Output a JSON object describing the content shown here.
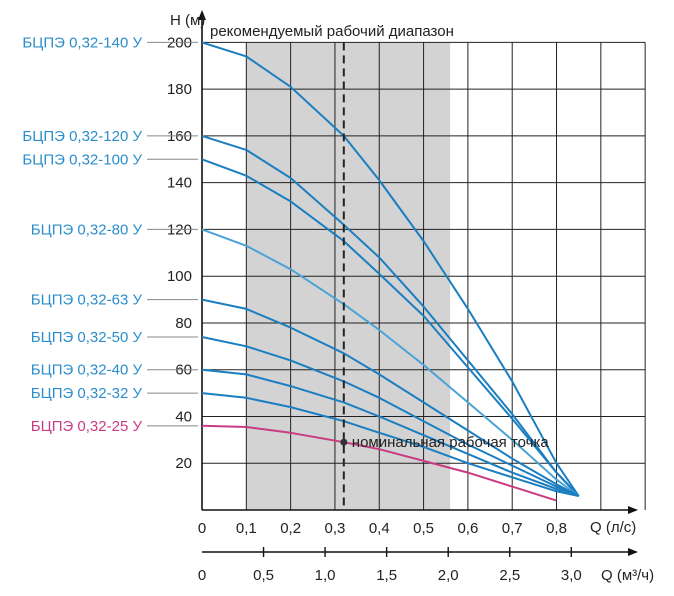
{
  "chart_data": {
    "type": "line",
    "ylabel": "H (м)",
    "xlabel": "Q (л/с)",
    "xlabel2": "Q (м³/ч)",
    "range_label": "рекомендуемый рабочий диапазон",
    "point_label": "номинальная рабочая точка",
    "y_ticks": [
      "20",
      "40",
      "60",
      "80",
      "100",
      "120",
      "140",
      "160",
      "180",
      "200"
    ],
    "x_ticks": [
      "0",
      "0,1",
      "0,2",
      "0,3",
      "0,4",
      "0,5",
      "0,6",
      "0,7",
      "0,8"
    ],
    "x2_ticks": [
      "0",
      "0,5",
      "1,0",
      "1,5",
      "2,0",
      "2,5",
      "3,0"
    ],
    "xlim": [
      0,
      0.95
    ],
    "ylim": [
      0,
      210
    ],
    "x2lim": [
      0,
      3.42
    ],
    "recommended_range": [
      0.1,
      0.56
    ],
    "nominal_flow": 0.32,
    "end_point": [
      0.85,
      6
    ],
    "grid": true,
    "colors": {
      "grid": "#222222",
      "range_fill": "#d3d3d3",
      "label_blue": "#2b8ecb",
      "label_pink": "#c83c82"
    },
    "series": [
      {
        "name": "БЦПЭ 0,32-140 У",
        "color": "#1a7ec1",
        "x": [
          0,
          0.1,
          0.2,
          0.32,
          0.4,
          0.5,
          0.6,
          0.7,
          0.8,
          0.85
        ],
        "y": [
          200,
          194,
          181,
          160,
          141,
          115,
          86,
          55,
          20,
          6
        ]
      },
      {
        "name": "БЦПЭ 0,32-120 У",
        "color": "#1a7ec1",
        "x": [
          0,
          0.1,
          0.2,
          0.32,
          0.4,
          0.5,
          0.6,
          0.7,
          0.8,
          0.85
        ],
        "y": [
          160,
          154,
          142,
          122,
          108,
          87,
          64,
          41,
          16,
          6
        ]
      },
      {
        "name": "БЦПЭ 0,32-100 У",
        "color": "#1a7ec1",
        "x": [
          0,
          0.1,
          0.2,
          0.32,
          0.4,
          0.5,
          0.6,
          0.7,
          0.8,
          0.85
        ],
        "y": [
          150,
          143,
          132,
          115,
          101,
          83,
          61,
          39,
          16,
          6
        ]
      },
      {
        "name": "БЦПЭ 0,32-80 У",
        "color": "#4aa3d6",
        "x": [
          0,
          0.1,
          0.2,
          0.32,
          0.4,
          0.5,
          0.6,
          0.7,
          0.8,
          0.85
        ],
        "y": [
          120,
          113,
          103,
          88,
          77,
          62,
          46,
          30,
          13,
          6
        ]
      },
      {
        "name": "БЦПЭ 0,32-63 У",
        "color": "#1a7ec1",
        "x": [
          0,
          0.1,
          0.2,
          0.32,
          0.4,
          0.5,
          0.6,
          0.7,
          0.8,
          0.85
        ],
        "y": [
          90,
          86,
          78,
          67,
          58,
          46,
          34,
          22,
          11,
          6
        ]
      },
      {
        "name": "БЦПЭ 0,32-50 У",
        "color": "#1a7ec1",
        "x": [
          0,
          0.1,
          0.2,
          0.32,
          0.4,
          0.5,
          0.6,
          0.7,
          0.8,
          0.85
        ],
        "y": [
          74,
          70,
          64,
          55,
          48,
          38,
          28,
          19,
          10,
          6
        ]
      },
      {
        "name": "БЦПЭ 0,32-40 У",
        "color": "#1a7ec1",
        "x": [
          0,
          0.1,
          0.2,
          0.32,
          0.4,
          0.5,
          0.6,
          0.7,
          0.8,
          0.85
        ],
        "y": [
          60,
          58,
          53,
          46,
          40,
          32,
          24,
          16,
          9,
          6
        ]
      },
      {
        "name": "БЦПЭ 0,32-32 У",
        "color": "#1a7ec1",
        "x": [
          0,
          0.1,
          0.2,
          0.32,
          0.4,
          0.5,
          0.6,
          0.7,
          0.8,
          0.85
        ],
        "y": [
          50,
          48,
          44,
          38,
          33,
          27,
          20,
          14,
          8,
          6
        ]
      },
      {
        "name": "БЦПЭ 0,32-25 У",
        "color": "#c83c82",
        "x": [
          0,
          0.1,
          0.2,
          0.32,
          0.4,
          0.5,
          0.6,
          0.7,
          0.8
        ],
        "y": [
          36,
          35.5,
          33,
          29,
          26,
          21,
          16,
          10,
          4
        ]
      }
    ]
  }
}
